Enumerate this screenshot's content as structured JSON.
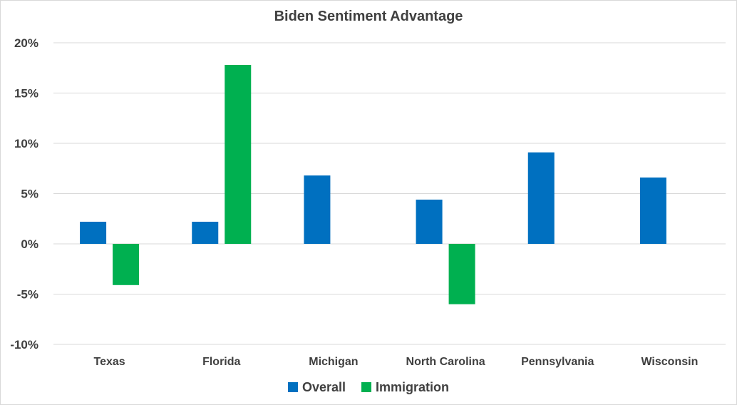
{
  "chart_data": {
    "type": "bar",
    "title": "Biden Sentiment Advantage",
    "categories": [
      "Texas",
      "Florida",
      "Michigan",
      "North Carolina",
      "Pennsylvania",
      "Wisconsin"
    ],
    "series": [
      {
        "name": "Overall",
        "color": "#0070c0",
        "values": [
          2.2,
          2.2,
          6.8,
          4.4,
          9.1,
          6.6
        ]
      },
      {
        "name": "Immigration",
        "color": "#00b050",
        "values": [
          -4.1,
          17.8,
          null,
          -6.0,
          null,
          null
        ]
      }
    ],
    "ylim": [
      -10,
      20
    ],
    "yticks": [
      20,
      15,
      10,
      5,
      0,
      -5,
      -10
    ],
    "ytick_labels": [
      "20%",
      "15%",
      "10%",
      "5%",
      "0%",
      "-5%",
      "-10%"
    ],
    "grid": true,
    "legend_position": "bottom"
  }
}
